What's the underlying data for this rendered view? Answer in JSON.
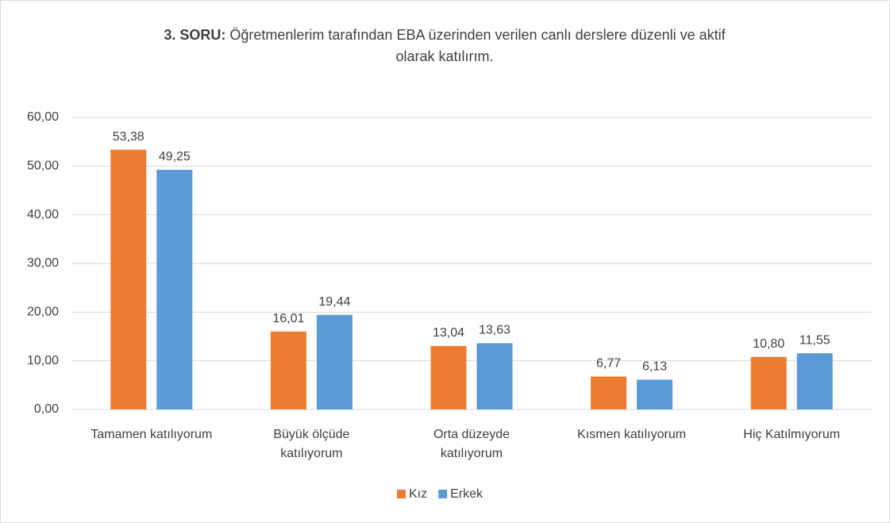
{
  "chart_data": {
    "type": "bar",
    "title": [
      "3. SORU:",
      "Öğretmenlerim tarafından EBA üzerinden verilen canlı derslere düzenli ve aktif",
      "olarak katılırım."
    ],
    "categories": [
      [
        "Tamamen katılıyorum"
      ],
      [
        "Büyük ölçüde",
        "katılıyorum"
      ],
      [
        "Orta düzeyde",
        "katılıyorum"
      ],
      [
        "Kısmen katılıyorum"
      ],
      [
        "Hiç Katılmıyorum"
      ]
    ],
    "series": [
      {
        "name": "Kız",
        "color": "#ed7d31",
        "values": [
          53.38,
          16.01,
          13.04,
          6.77,
          10.8
        ],
        "value_labels": [
          "53,38",
          "16,01",
          "13,04",
          "6,77",
          "10,80"
        ]
      },
      {
        "name": "Erkek",
        "color": "#5b9bd5",
        "values": [
          49.25,
          19.44,
          13.63,
          6.13,
          11.55
        ],
        "value_labels": [
          "49,25",
          "19,44",
          "13,63",
          "6,13",
          "11,55"
        ]
      }
    ],
    "ylim": [
      0,
      60
    ],
    "yticks": [
      {
        "value": 0,
        "label": "0,00"
      },
      {
        "value": 10,
        "label": "10,00"
      },
      {
        "value": 20,
        "label": "20,00"
      },
      {
        "value": 30,
        "label": "30,00"
      },
      {
        "value": 40,
        "label": "40,00"
      },
      {
        "value": 50,
        "label": "50,00"
      },
      {
        "value": 60,
        "label": "60,00"
      }
    ],
    "grid": true,
    "legend": "bottom"
  }
}
